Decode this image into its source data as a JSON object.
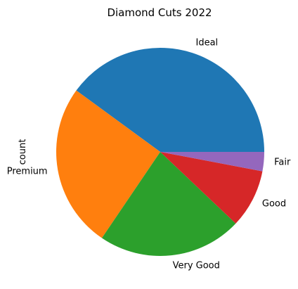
{
  "chart_data": {
    "type": "pie",
    "title": "Diamond Cuts 2022",
    "ylabel": "count",
    "start_angle_deg": 0,
    "direction": "counterclockwise",
    "slices": [
      {
        "label": "Ideal",
        "value": 21551,
        "color": "#1f77b4"
      },
      {
        "label": "Premium",
        "value": 13791,
        "color": "#ff7f0e"
      },
      {
        "label": "Very Good",
        "value": 12082,
        "color": "#2ca02c"
      },
      {
        "label": "Good",
        "value": 4906,
        "color": "#d62728"
      },
      {
        "label": "Fair",
        "value": 1610,
        "color": "#9467bd"
      }
    ]
  }
}
